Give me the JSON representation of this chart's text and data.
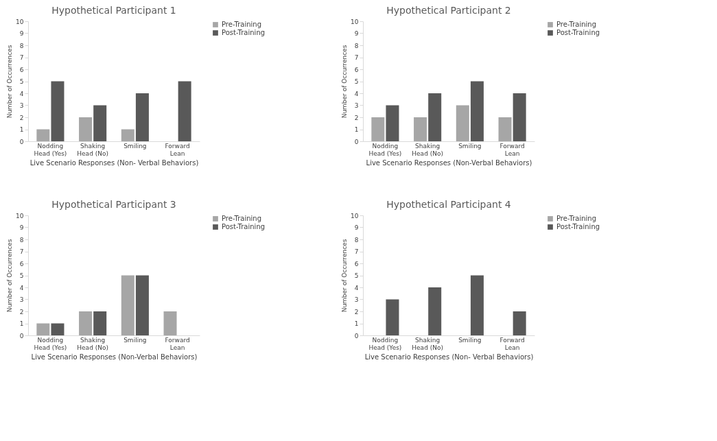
{
  "chart_data": [
    {
      "type": "bar",
      "title": "Hypothetical Participant 1",
      "xlabel": "Live Scenario Responses (Non- Verbal Behaviors)",
      "ylabel": "Number of Occurrences",
      "categories": [
        "Nodding Head (Yes)",
        "Shaking Head (No)",
        "Smiling",
        "Forward Lean"
      ],
      "series": [
        {
          "name": "Pre-Training",
          "color": "#a6a6a6",
          "values": [
            1,
            2,
            1,
            0
          ]
        },
        {
          "name": "Post-Training",
          "color": "#595959",
          "values": [
            5,
            3,
            4,
            5
          ]
        }
      ],
      "ylim": [
        0,
        10
      ],
      "yticks": [
        0,
        1,
        2,
        3,
        4,
        5,
        6,
        7,
        8,
        9,
        10
      ],
      "grid": false,
      "legend": "right"
    },
    {
      "type": "bar",
      "title": "Hypothetical Participant 2",
      "xlabel": "Live Scenario Responses (Non-Verbal Behaviors)",
      "ylabel": "Number of Occurrences",
      "categories": [
        "Nodding Head (Yes)",
        "Shaking Head (No)",
        "Smiling",
        "Forward Lean"
      ],
      "series": [
        {
          "name": "Pre-Training",
          "color": "#a6a6a6",
          "values": [
            2,
            2,
            3,
            2
          ]
        },
        {
          "name": "Post-Training",
          "color": "#595959",
          "values": [
            3,
            4,
            5,
            4
          ]
        }
      ],
      "ylim": [
        0,
        10
      ],
      "yticks": [
        0,
        1,
        2,
        3,
        4,
        5,
        6,
        7,
        8,
        9,
        10
      ],
      "grid": false,
      "legend": "right"
    },
    {
      "type": "bar",
      "title": "Hypothetical Participant 3",
      "xlabel": "Live Scenario Responses (Non-Verbal Behaviors)",
      "ylabel": "Number of Occurrences",
      "categories": [
        "Nodding Head (Yes)",
        "Shaking Head (No)",
        "Smiling",
        "Forward Lean"
      ],
      "series": [
        {
          "name": "Pre-Training",
          "color": "#a6a6a6",
          "values": [
            1,
            2,
            5,
            2
          ]
        },
        {
          "name": "Post-Training",
          "color": "#595959",
          "values": [
            1,
            2,
            5,
            0
          ]
        }
      ],
      "ylim": [
        0,
        10
      ],
      "yticks": [
        0,
        1,
        2,
        3,
        4,
        5,
        6,
        7,
        8,
        9,
        10
      ],
      "grid": false,
      "legend": "right"
    },
    {
      "type": "bar",
      "title": "Hypothetical Participant 4",
      "xlabel": "Live Scenario Responses (Non- Verbal Behaviors)",
      "ylabel": "Number of Occurrences",
      "categories": [
        "Nodding Head (Yes)",
        "Shaking Head (No)",
        "Smiling",
        "Forward Lean"
      ],
      "series": [
        {
          "name": "Pre-Training",
          "color": "#a6a6a6",
          "values": [
            0,
            0,
            0,
            0
          ]
        },
        {
          "name": "Post-Training",
          "color": "#595959",
          "values": [
            3,
            4,
            5,
            2
          ]
        }
      ],
      "ylim": [
        0,
        10
      ],
      "yticks": [
        0,
        1,
        2,
        3,
        4,
        5,
        6,
        7,
        8,
        9,
        10
      ],
      "grid": false,
      "legend": "right"
    }
  ]
}
